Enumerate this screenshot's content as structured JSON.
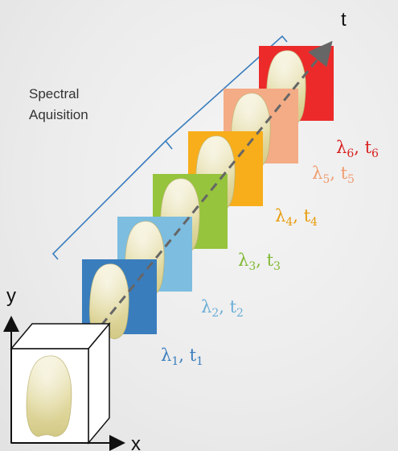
{
  "axes": {
    "t": "t",
    "y": "y",
    "x": "x"
  },
  "spectral_label": {
    "line1": "Spectral",
    "line2": "Aquisition"
  },
  "frames": [
    {
      "lambda_sub": "1",
      "t_sub": "1",
      "color": "#3a7dbd",
      "label_color": "#3a7dbd"
    },
    {
      "lambda_sub": "2",
      "t_sub": "2",
      "color": "#7cbde0",
      "label_color": "#6aaed6"
    },
    {
      "lambda_sub": "3",
      "t_sub": "3",
      "color": "#96c43c",
      "label_color": "#7fb832"
    },
    {
      "lambda_sub": "4",
      "t_sub": "4",
      "color": "#f7ae1a",
      "label_color": "#e89c0a"
    },
    {
      "lambda_sub": "5",
      "t_sub": "5",
      "color": "#f4ac86",
      "label_color": "#f09c70"
    },
    {
      "lambda_sub": "6",
      "t_sub": "6",
      "color": "#ec2a2a",
      "label_color": "#d91f1f"
    }
  ],
  "colors": {
    "bracket": "#3a7dbd",
    "dashed_axis": "#666666",
    "axis": "#111111",
    "tooth_fill": "#e6deaa",
    "tooth_shade": "#cfc68a"
  }
}
